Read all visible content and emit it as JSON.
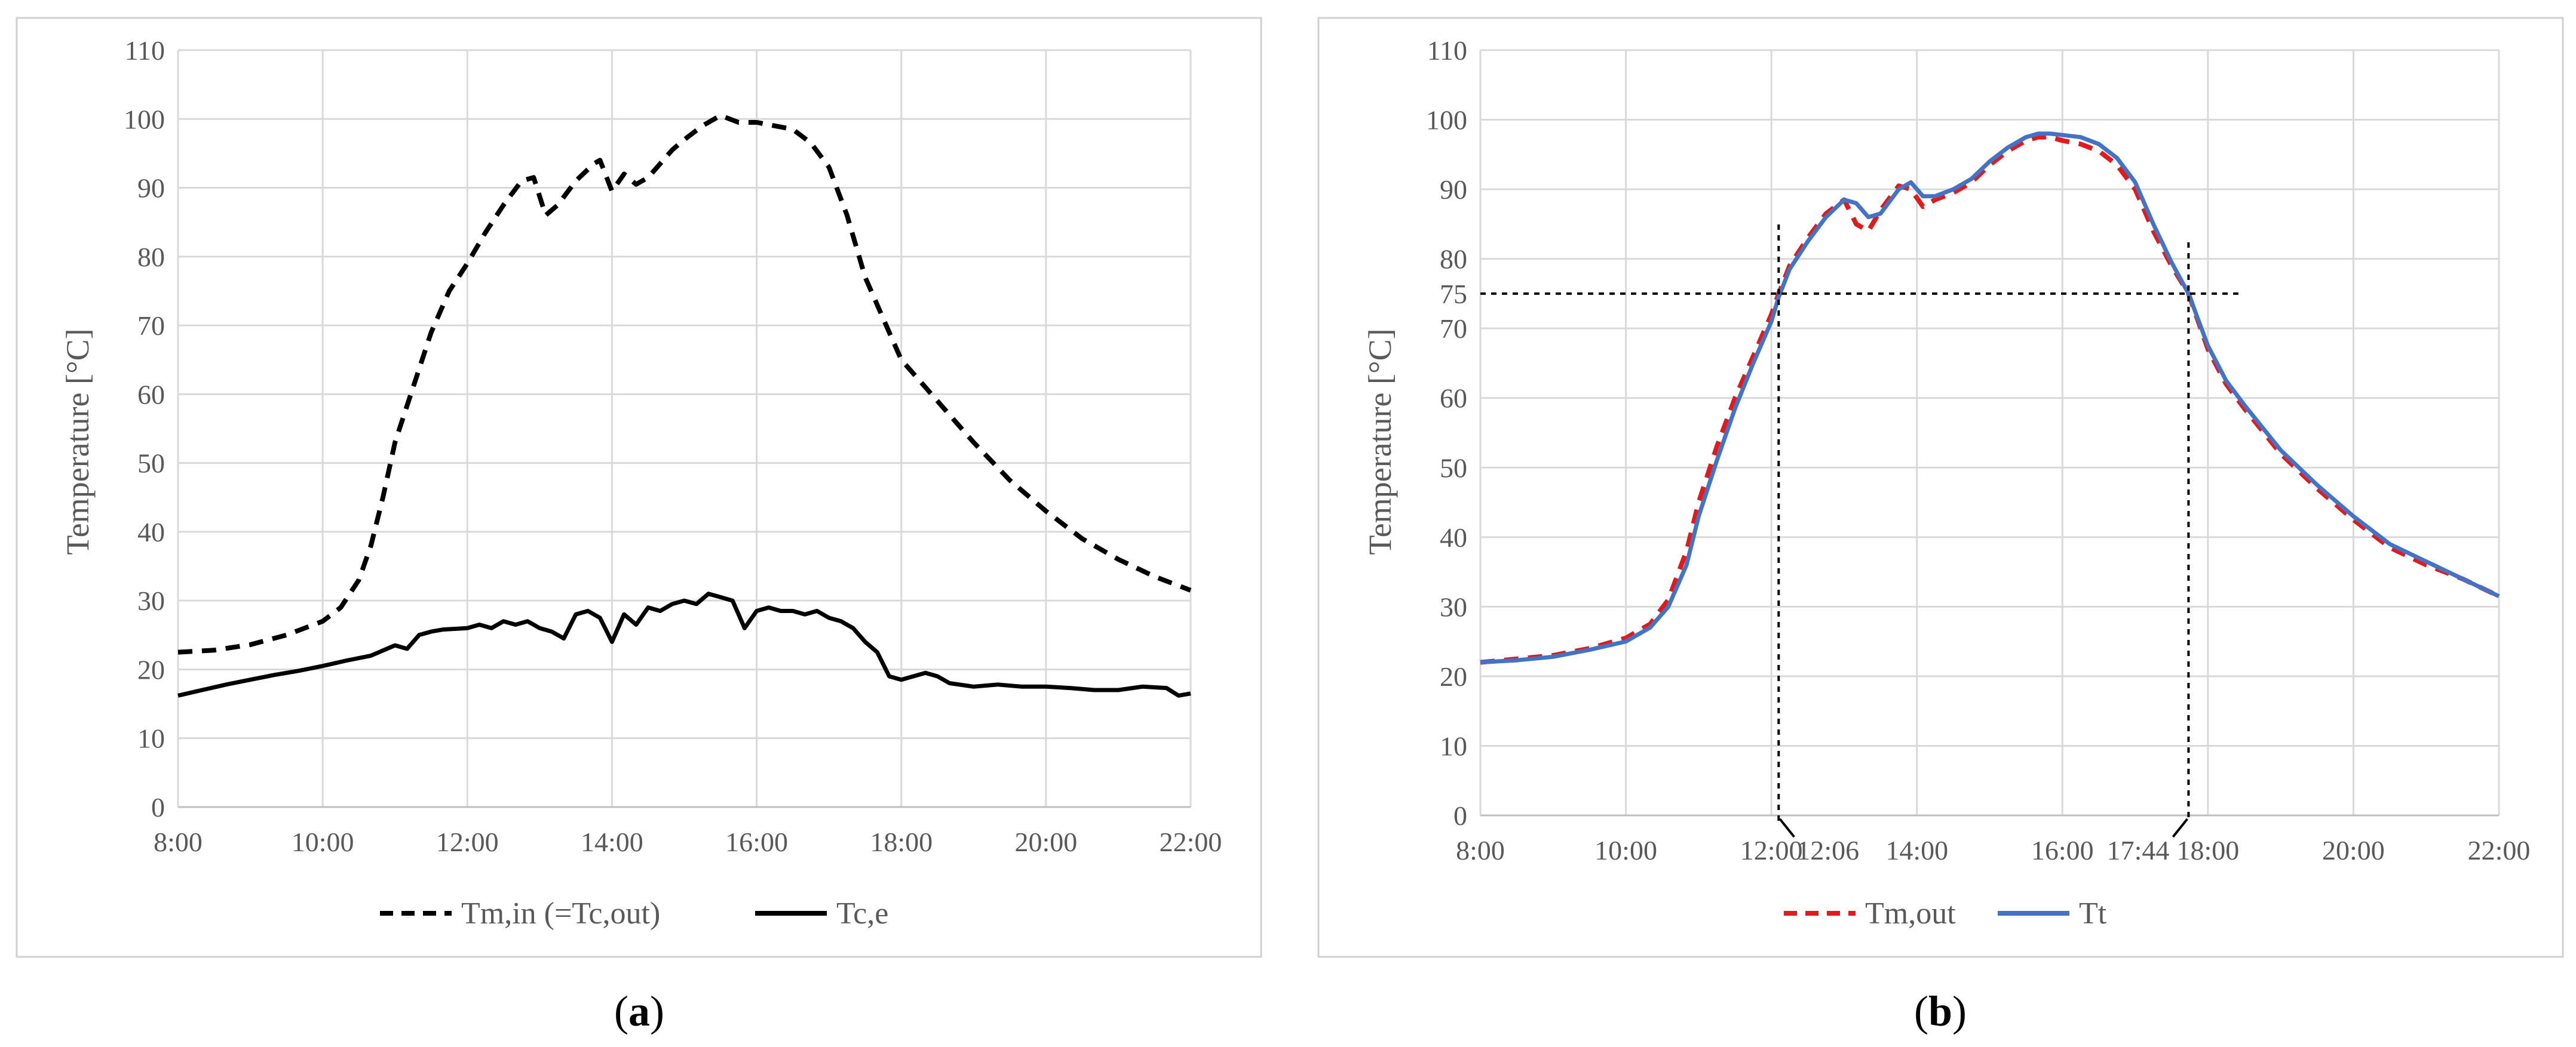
{
  "figure": {
    "panel_a_caption": {
      "open": "(",
      "letter": "a",
      "close": ")"
    },
    "panel_b_caption": {
      "open": "(",
      "letter": "b",
      "close": ")"
    }
  },
  "chart_data": [
    {
      "type": "line",
      "title": "",
      "xlabel": "",
      "ylabel": "Temperature [°C]",
      "xlim": [
        "8:00",
        "22:00"
      ],
      "ylim": [
        0,
        110
      ],
      "grid": true,
      "legend_position": "bottom",
      "x_ticks": [
        "8:00",
        "10:00",
        "12:00",
        "14:00",
        "16:00",
        "18:00",
        "20:00",
        "22:00"
      ],
      "y_ticks": [
        0,
        10,
        20,
        30,
        40,
        50,
        60,
        70,
        80,
        90,
        100,
        110
      ],
      "series": [
        {
          "name": "Tm,in (=Tc,out)",
          "color": "#000000",
          "line_style": "dashed",
          "x": [
            "8:00",
            "8:30",
            "9:00",
            "9:30",
            "10:00",
            "10:15",
            "10:30",
            "10:40",
            "10:50",
            "11:00",
            "11:15",
            "11:30",
            "11:45",
            "12:00",
            "12:15",
            "12:30",
            "12:45",
            "12:55",
            "13:05",
            "13:15",
            "13:30",
            "13:45",
            "13:50",
            "14:00",
            "14:10",
            "14:20",
            "14:30",
            "14:40",
            "14:50",
            "15:00",
            "15:15",
            "15:30",
            "15:45",
            "16:00",
            "16:15",
            "16:30",
            "16:45",
            "17:00",
            "17:15",
            "17:30",
            "17:45",
            "18:00",
            "18:15",
            "18:30",
            "19:00",
            "19:30",
            "20:00",
            "20:30",
            "21:00",
            "21:30",
            "22:00"
          ],
          "values": [
            22.5,
            22.8,
            23.6,
            25.0,
            27.0,
            29.0,
            33.0,
            38.0,
            45.0,
            53.0,
            61.0,
            69.0,
            75.0,
            79.0,
            83.5,
            87.5,
            91.0,
            91.5,
            86.0,
            87.5,
            91.0,
            93.5,
            94.0,
            89.5,
            92.0,
            90.5,
            91.5,
            93.5,
            95.5,
            97.0,
            99.0,
            100.5,
            99.5,
            99.5,
            99.0,
            98.5,
            96.5,
            93.0,
            86.0,
            77.0,
            71.0,
            65.0,
            62.0,
            59.0,
            53.0,
            47.5,
            43.0,
            39.0,
            36.0,
            33.5,
            31.5
          ]
        },
        {
          "name": "Tc,e",
          "color": "#000000",
          "line_style": "solid",
          "x": [
            "8:00",
            "8:20",
            "8:40",
            "9:00",
            "9:20",
            "9:40",
            "10:00",
            "10:20",
            "10:40",
            "11:00",
            "11:10",
            "11:20",
            "11:30",
            "11:40",
            "12:00",
            "12:10",
            "12:20",
            "12:30",
            "12:40",
            "12:50",
            "13:00",
            "13:10",
            "13:20",
            "13:30",
            "13:40",
            "13:50",
            "14:00",
            "14:10",
            "14:20",
            "14:30",
            "14:40",
            "14:50",
            "15:00",
            "15:10",
            "15:20",
            "15:30",
            "15:40",
            "15:50",
            "16:00",
            "16:10",
            "16:20",
            "16:30",
            "16:40",
            "16:50",
            "17:00",
            "17:10",
            "17:20",
            "17:30",
            "17:40",
            "17:50",
            "18:00",
            "18:10",
            "18:20",
            "18:30",
            "18:40",
            "19:00",
            "19:20",
            "19:40",
            "20:00",
            "20:20",
            "20:40",
            "21:00",
            "21:20",
            "21:40",
            "21:50",
            "22:00"
          ],
          "values": [
            16.2,
            17.0,
            17.8,
            18.5,
            19.2,
            19.8,
            20.5,
            21.3,
            22.0,
            23.5,
            23.0,
            25.0,
            25.5,
            25.8,
            26.0,
            26.5,
            26.0,
            27.0,
            26.5,
            27.0,
            26.0,
            25.5,
            24.5,
            28.0,
            28.5,
            27.5,
            24.0,
            28.0,
            26.5,
            29.0,
            28.5,
            29.5,
            30.0,
            29.5,
            31.0,
            30.5,
            30.0,
            26.0,
            28.5,
            29.0,
            28.5,
            28.5,
            28.0,
            28.5,
            27.5,
            27.0,
            26.0,
            24.0,
            22.5,
            19.0,
            18.5,
            19.0,
            19.5,
            19.0,
            18.0,
            17.5,
            17.8,
            17.5,
            17.5,
            17.3,
            17.0,
            17.0,
            17.5,
            17.3,
            16.2,
            16.5
          ]
        }
      ]
    },
    {
      "type": "line",
      "title": "",
      "xlabel": "",
      "ylabel": "Temperature [°C]",
      "xlim": [
        "8:00",
        "22:00"
      ],
      "ylim": [
        0,
        110
      ],
      "grid": true,
      "legend_position": "bottom",
      "x_ticks": [
        "8:00",
        "10:00",
        "12:00",
        "14:00",
        "16:00",
        "18:00",
        "20:00",
        "22:00"
      ],
      "y_ticks": [
        0,
        10,
        20,
        30,
        40,
        50,
        60,
        70,
        75,
        80,
        90,
        100,
        110
      ],
      "annotations": {
        "threshold_value": 75,
        "threshold_start": "12:06",
        "threshold_end": "17:44",
        "threshold_start_label": "12:06",
        "threshold_end_label": "17:44",
        "threshold_line_style": "dotted"
      },
      "series": [
        {
          "name": "Tm,out",
          "color": "#e31a1c",
          "line_style": "dashed",
          "x": [
            "8:00",
            "8:30",
            "9:00",
            "9:30",
            "10:00",
            "10:20",
            "10:35",
            "10:50",
            "11:00",
            "11:15",
            "11:30",
            "11:45",
            "12:00",
            "12:06",
            "12:15",
            "12:30",
            "12:45",
            "13:00",
            "13:10",
            "13:20",
            "13:30",
            "13:45",
            "13:55",
            "14:05",
            "14:15",
            "14:30",
            "14:45",
            "15:00",
            "15:15",
            "15:30",
            "15:40",
            "15:50",
            "16:00",
            "16:15",
            "16:30",
            "16:45",
            "17:00",
            "17:15",
            "17:30",
            "17:44",
            "18:00",
            "18:15",
            "18:30",
            "19:00",
            "19:30",
            "20:00",
            "20:30",
            "21:00",
            "21:30",
            "22:00"
          ],
          "values": [
            22.0,
            22.5,
            23.0,
            24.0,
            25.5,
            27.5,
            31.0,
            38.0,
            45.0,
            53.0,
            60.0,
            66.0,
            72.0,
            75.0,
            79.0,
            83.0,
            86.5,
            88.5,
            85.0,
            84.0,
            87.0,
            90.5,
            90.0,
            87.5,
            88.5,
            89.5,
            91.0,
            93.5,
            95.5,
            97.0,
            97.5,
            97.5,
            97.0,
            96.5,
            95.5,
            93.5,
            90.0,
            84.0,
            79.0,
            75.0,
            67.0,
            62.0,
            58.5,
            52.0,
            47.0,
            42.5,
            38.5,
            36.0,
            34.0,
            31.5
          ]
        },
        {
          "name": "Tt",
          "color": "#4472c4",
          "line_style": "solid",
          "x": [
            "8:00",
            "8:30",
            "9:00",
            "9:30",
            "10:00",
            "10:20",
            "10:35",
            "10:50",
            "11:00",
            "11:15",
            "11:30",
            "11:45",
            "12:00",
            "12:06",
            "12:15",
            "12:30",
            "12:45",
            "13:00",
            "13:10",
            "13:20",
            "13:30",
            "13:45",
            "13:55",
            "14:05",
            "14:15",
            "14:30",
            "14:45",
            "15:00",
            "15:15",
            "15:30",
            "15:40",
            "15:50",
            "16:00",
            "16:15",
            "16:30",
            "16:45",
            "17:00",
            "17:15",
            "17:30",
            "17:44",
            "18:00",
            "18:15",
            "18:30",
            "19:00",
            "19:30",
            "20:00",
            "20:30",
            "21:00",
            "21:30",
            "22:00"
          ],
          "values": [
            22.0,
            22.3,
            22.8,
            23.8,
            25.0,
            27.0,
            30.0,
            36.0,
            43.0,
            51.0,
            58.5,
            65.0,
            71.0,
            74.5,
            78.5,
            82.5,
            86.0,
            88.5,
            88.0,
            86.0,
            86.5,
            90.0,
            91.0,
            89.0,
            89.0,
            90.0,
            91.5,
            94.0,
            96.0,
            97.5,
            98.0,
            98.0,
            97.8,
            97.5,
            96.5,
            94.5,
            91.0,
            85.0,
            79.5,
            75.0,
            67.5,
            62.5,
            59.0,
            52.5,
            47.5,
            43.0,
            39.0,
            36.5,
            34.0,
            31.5
          ]
        }
      ]
    }
  ]
}
